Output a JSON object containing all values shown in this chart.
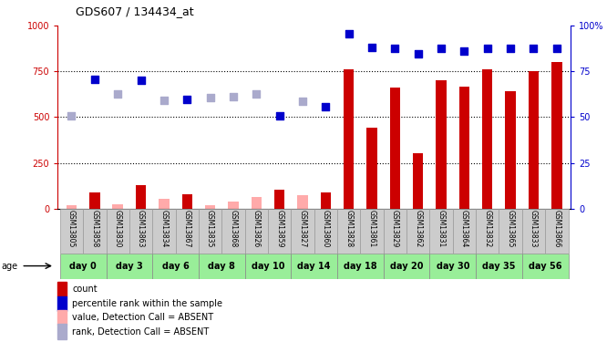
{
  "title": "GDS607 / 134434_at",
  "samples": [
    "GSM13805",
    "GSM13858",
    "GSM13830",
    "GSM13863",
    "GSM13834",
    "GSM13867",
    "GSM13835",
    "GSM13868",
    "GSM13826",
    "GSM13859",
    "GSM13827",
    "GSM13860",
    "GSM13828",
    "GSM13861",
    "GSM13829",
    "GSM13862",
    "GSM13831",
    "GSM13864",
    "GSM13832",
    "GSM13865",
    "GSM13833",
    "GSM13866"
  ],
  "day_groups": [
    {
      "label": "day 0",
      "start": 0,
      "end": 2
    },
    {
      "label": "day 3",
      "start": 2,
      "end": 4
    },
    {
      "label": "day 6",
      "start": 4,
      "end": 6
    },
    {
      "label": "day 8",
      "start": 6,
      "end": 8
    },
    {
      "label": "day 10",
      "start": 8,
      "end": 10
    },
    {
      "label": "day 14",
      "start": 10,
      "end": 12
    },
    {
      "label": "day 18",
      "start": 12,
      "end": 14
    },
    {
      "label": "day 20",
      "start": 14,
      "end": 16
    },
    {
      "label": "day 30",
      "start": 16,
      "end": 18
    },
    {
      "label": "day 35",
      "start": 18,
      "end": 20
    },
    {
      "label": "day 56",
      "start": 20,
      "end": 22
    }
  ],
  "count_values": [
    20,
    90,
    25,
    130,
    55,
    80,
    18,
    40,
    65,
    105,
    75,
    90,
    760,
    440,
    660,
    305,
    700,
    665,
    760,
    640,
    750,
    800
  ],
  "count_absent": [
    true,
    false,
    true,
    false,
    true,
    false,
    true,
    true,
    true,
    false,
    true,
    false,
    false,
    false,
    false,
    false,
    false,
    false,
    false,
    false,
    false,
    false
  ],
  "rank_values": [
    505,
    705,
    625,
    700,
    590,
    595,
    605,
    610,
    625,
    505,
    585,
    555,
    955,
    880,
    875,
    845,
    875,
    860,
    875,
    875,
    875,
    875
  ],
  "rank_absent": [
    true,
    false,
    true,
    false,
    true,
    false,
    true,
    true,
    true,
    false,
    true,
    false,
    false,
    false,
    false,
    false,
    false,
    false,
    false,
    false,
    false,
    false
  ],
  "ylim_left": [
    0,
    1000
  ],
  "ylim_right": [
    0,
    100
  ],
  "yticks_left": [
    0,
    250,
    500,
    750,
    1000
  ],
  "yticks_right": [
    0,
    25,
    50,
    75,
    100
  ],
  "color_count_present": "#cc0000",
  "color_count_absent": "#ffaaaa",
  "color_rank_present": "#0000cc",
  "color_rank_absent": "#aaaacc",
  "plot_bg": "#ffffff",
  "sample_bg": "#cccccc",
  "day_bg": "#99ee99",
  "right_axis_color": "#0000cc",
  "left_axis_color": "#cc0000",
  "legend_items": [
    {
      "color": "#cc0000",
      "label": "count"
    },
    {
      "color": "#0000cc",
      "label": "percentile rank within the sample"
    },
    {
      "color": "#ffaaaa",
      "label": "value, Detection Call = ABSENT"
    },
    {
      "color": "#aaaacc",
      "label": "rank, Detection Call = ABSENT"
    }
  ]
}
